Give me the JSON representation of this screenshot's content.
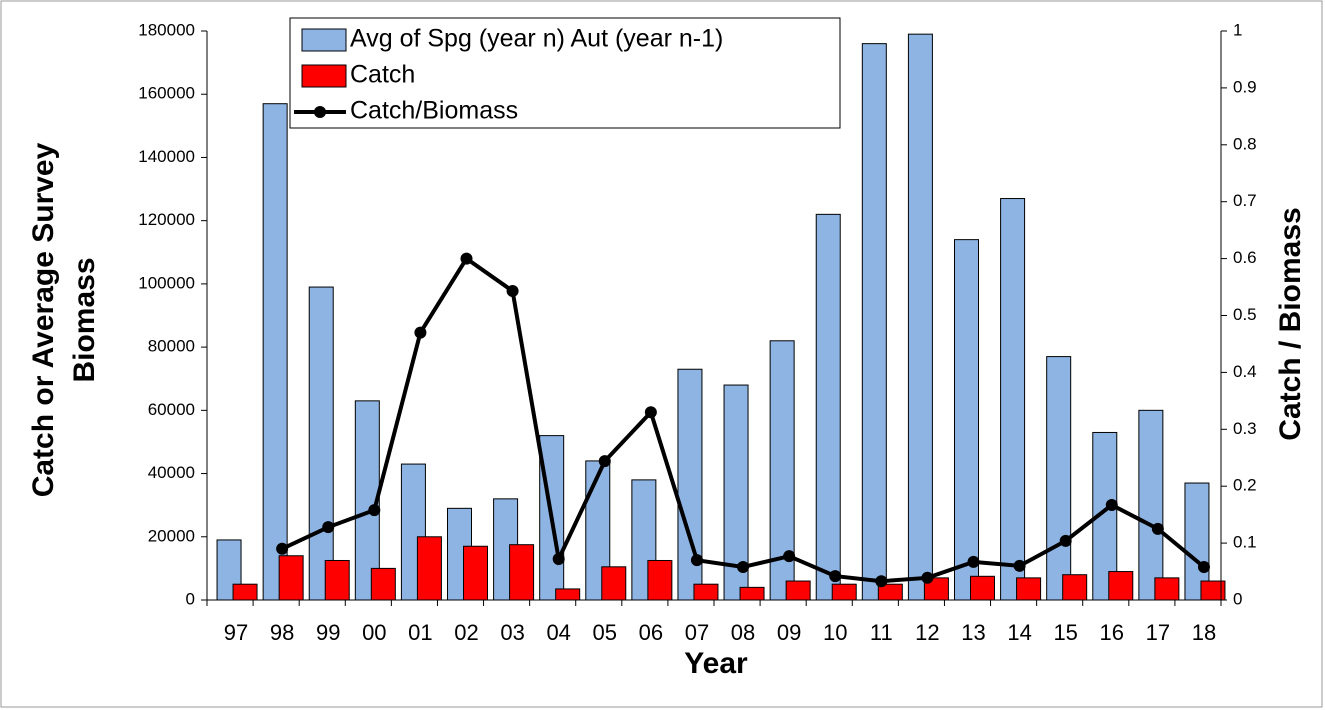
{
  "chart_data": {
    "type": "bar",
    "categories": [
      "97",
      "98",
      "99",
      "00",
      "01",
      "02",
      "03",
      "04",
      "05",
      "06",
      "07",
      "08",
      "09",
      "10",
      "11",
      "12",
      "13",
      "14",
      "15",
      "16",
      "17",
      "18"
    ],
    "series": [
      {
        "name": "Avg of Spg (year n) Aut (year n-1)",
        "color": "#8eb4e3",
        "type": "bar",
        "values": [
          19000,
          157000,
          99000,
          63000,
          43000,
          29000,
          32000,
          52000,
          44000,
          38000,
          73000,
          68000,
          82000,
          122000,
          176000,
          179000,
          114000,
          127000,
          77000,
          53000,
          60000,
          37000
        ]
      },
      {
        "name": "Catch",
        "color": "#ff0000",
        "type": "bar",
        "values": [
          5000,
          14000,
          12500,
          10000,
          20000,
          17000,
          17500,
          3500,
          10500,
          12500,
          5000,
          4000,
          6000,
          5000,
          5000,
          7000,
          7500,
          7000,
          8000,
          9000,
          7000,
          6000
        ]
      },
      {
        "name": "Catch/Biomass",
        "color": "#000000",
        "type": "line",
        "axis": "y2",
        "values": [
          null,
          0.09,
          0.128,
          0.158,
          0.47,
          0.6,
          0.543,
          0.072,
          0.244,
          0.33,
          0.07,
          0.058,
          0.077,
          0.042,
          0.033,
          0.039,
          0.067,
          0.06,
          0.104,
          0.167,
          0.125,
          0.058
        ]
      }
    ],
    "xlabel": "Year",
    "ylabel": [
      "Catch or Average Survey",
      "Biomass"
    ],
    "y2label": "Catch / Biomass",
    "ylim": [
      0,
      180000
    ],
    "yticks": [
      0,
      20000,
      40000,
      60000,
      80000,
      100000,
      120000,
      140000,
      160000,
      180000
    ],
    "y2lim": [
      0,
      1
    ],
    "y2ticks": [
      0,
      0.1,
      0.2,
      0.3,
      0.4,
      0.5,
      0.6,
      0.7,
      0.8,
      0.9,
      1
    ],
    "legend": "top-left"
  }
}
